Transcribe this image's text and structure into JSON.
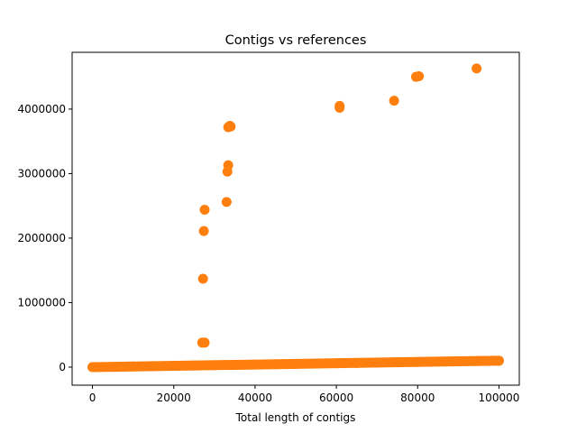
{
  "chart_data": {
    "type": "scatter",
    "title": "Contigs vs references",
    "xlabel": "Total length of contigs",
    "ylabel": "",
    "xlim": [
      -5000,
      105000
    ],
    "ylim": [
      -280000,
      4880000
    ],
    "xticks": [
      0,
      20000,
      40000,
      60000,
      80000,
      100000
    ],
    "yticks": [
      0,
      1000000,
      2000000,
      3000000,
      4000000
    ],
    "xtick_labels": [
      "0",
      "20000",
      "40000",
      "60000",
      "80000",
      "100000"
    ],
    "ytick_labels": [
      "0",
      "1000000",
      "2000000",
      "3000000",
      "4000000"
    ],
    "grid": false,
    "point_color": "#ff7f0e",
    "series": [
      {
        "points": [
          [
            0,
            0
          ],
          [
            5000,
            5000
          ],
          [
            10000,
            10000
          ],
          [
            15000,
            15000
          ],
          [
            20000,
            20000
          ],
          [
            25000,
            25000
          ],
          [
            30000,
            30000
          ],
          [
            35000,
            35000
          ],
          [
            40000,
            40000
          ],
          [
            45000,
            45000
          ],
          [
            50000,
            50000
          ],
          [
            55000,
            55000
          ],
          [
            60000,
            60000
          ],
          [
            65000,
            65000
          ],
          [
            70000,
            70000
          ],
          [
            75000,
            75000
          ],
          [
            80000,
            80000
          ],
          [
            85000,
            85000
          ],
          [
            90000,
            90000
          ],
          [
            95000,
            95000
          ],
          [
            100000,
            100000
          ],
          [
            27000,
            380000
          ],
          [
            27600,
            380000
          ],
          [
            27200,
            1370000
          ],
          [
            27400,
            2110000
          ],
          [
            27600,
            2440000
          ],
          [
            33000,
            2560000
          ],
          [
            33200,
            3030000
          ],
          [
            33400,
            3130000
          ],
          [
            33400,
            3720000
          ],
          [
            33800,
            3740000
          ],
          [
            34000,
            3730000
          ],
          [
            60800,
            4020000
          ],
          [
            60800,
            4050000
          ],
          [
            74200,
            4130000
          ],
          [
            79600,
            4500000
          ],
          [
            80300,
            4510000
          ],
          [
            94500,
            4630000
          ]
        ]
      }
    ]
  }
}
